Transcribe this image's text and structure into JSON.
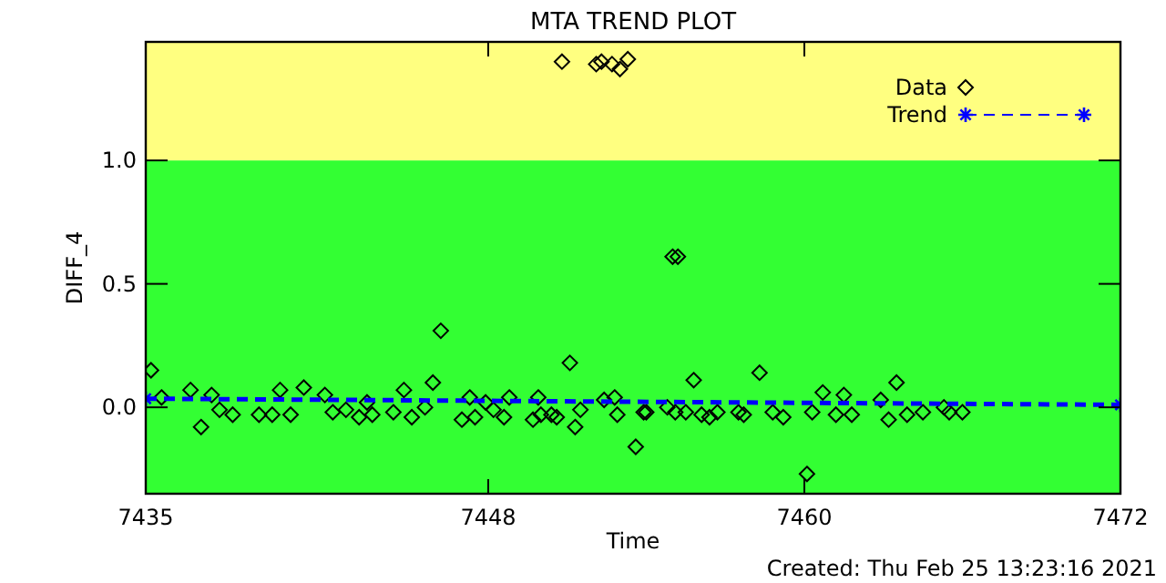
{
  "chart_data": {
    "type": "scatter",
    "title": "MTA TREND PLOT",
    "xlabel": "Time",
    "ylabel": "DIFF_4",
    "annotations": [
      "Created: Thu Feb 25 13:23:16 2021"
    ],
    "xlim": [
      7435,
      7472
    ],
    "xticks": [
      7435,
      7448,
      7460,
      7472
    ],
    "ylim": [
      -0.35,
      1.48
    ],
    "yticks": [
      {
        "value": 0,
        "label": "0.0"
      },
      {
        "value": 0.5,
        "label": "0.5"
      },
      {
        "value": 1,
        "label": "1.0"
      }
    ],
    "bands": [
      {
        "axis": "y",
        "from": -0.35,
        "to": 1.0,
        "color": "#33ff33"
      },
      {
        "axis": "y",
        "from": 1.0,
        "to": 1.48,
        "color": "#ffff80"
      }
    ],
    "legend": "top right",
    "grid": false,
    "series": [
      {
        "name": "Data",
        "marker": "diamond",
        "color": "#000000",
        "x": [
          7435.2,
          7435.6,
          7436.7,
          7437.1,
          7437.5,
          7437.8,
          7438.3,
          7439.3,
          7439.8,
          7440.1,
          7440.5,
          7441.0,
          7441.8,
          7442.1,
          7442.6,
          7443.1,
          7443.4,
          7443.6,
          7444.4,
          7444.8,
          7445.1,
          7445.6,
          7445.9,
          7446.2,
          7447.0,
          7447.3,
          7447.5,
          7447.9,
          7448.2,
          7448.6,
          7448.8,
          7449.7,
          7449.9,
          7450.0,
          7450.4,
          7450.6,
          7451.1,
          7451.3,
          7451.5,
          7452.4,
          7452.8,
          7452.9,
          7453.6,
          7450.8,
          7452.1,
          7452.3,
          7452.7,
          7453.0,
          7453.3,
          7455.0,
          7455.2,
          7453.9,
          7454.0,
          7454.8,
          7455.1,
          7455.5,
          7455.8,
          7456.1,
          7456.4,
          7456.7,
          7457.5,
          7457.7,
          7458.3,
          7458.8,
          7459.2,
          7460.1,
          7460.3,
          7460.7,
          7461.2,
          7461.5,
          7461.8,
          7462.9,
          7463.2,
          7463.5,
          7463.9,
          7464.5,
          7465.3,
          7465.5,
          7466.0
        ],
        "values": [
          0.15,
          0.04,
          0.07,
          -0.08,
          0.05,
          -0.01,
          -0.03,
          -0.03,
          -0.03,
          0.07,
          -0.03,
          0.08,
          0.05,
          -0.02,
          -0.01,
          -0.04,
          0.02,
          -0.03,
          -0.02,
          0.07,
          -0.04,
          0.0,
          0.1,
          0.31,
          -0.05,
          0.04,
          -0.04,
          0.02,
          -0.01,
          -0.04,
          0.04,
          -0.05,
          0.04,
          -0.03,
          -0.03,
          -0.04,
          0.18,
          -0.08,
          -0.01,
          0.03,
          0.04,
          -0.03,
          -0.16,
          1.4,
          1.39,
          1.4,
          1.39,
          1.37,
          1.41,
          0.61,
          0.61,
          -0.02,
          -0.02,
          0.0,
          -0.02,
          -0.02,
          0.11,
          -0.03,
          -0.04,
          -0.02,
          -0.02,
          -0.03,
          0.14,
          -0.02,
          -0.04,
          -0.27,
          -0.02,
          0.06,
          -0.03,
          0.05,
          -0.03,
          0.03,
          -0.05,
          0.1,
          -0.03,
          -0.02,
          0.0,
          -0.02,
          -0.02
        ]
      },
      {
        "name": "Trend",
        "type": "line",
        "marker": "cross",
        "line_style": "dashed",
        "color": "#0000ff",
        "x": [
          7435,
          7472
        ],
        "values": [
          0.035,
          0.01
        ]
      }
    ]
  }
}
